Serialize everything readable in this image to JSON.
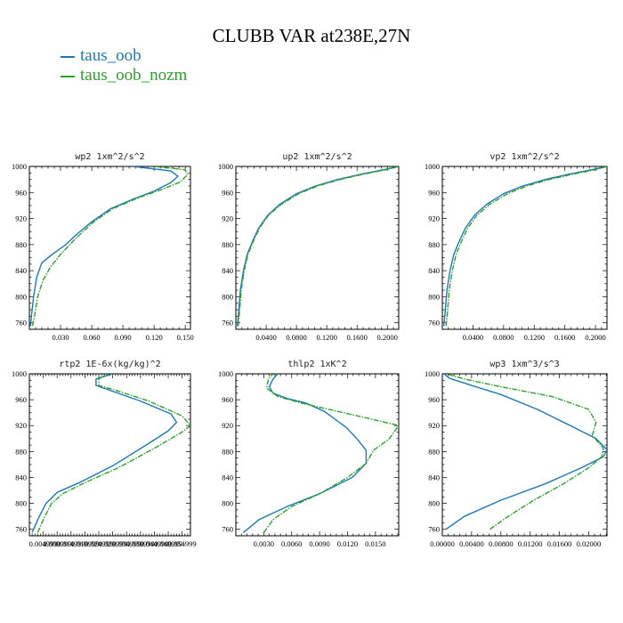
{
  "title": "CLUBB VAR at238E,27N",
  "legend": [
    {
      "name": "taus_oob",
      "color": "#1f77b4"
    },
    {
      "name": "taus_oob_nozm",
      "color": "#2ca02c"
    }
  ],
  "chart_data": [
    {
      "type": "line",
      "title": "wp2   1xm^2/s^2",
      "xlim": [
        0.0,
        0.155
      ],
      "xticks": [
        "0.030",
        "0.060",
        "0.090",
        "0.120",
        "0.150"
      ],
      "xtick_values": [
        0.03,
        0.06,
        0.09,
        0.12,
        0.15
      ],
      "ylim": [
        1000,
        750
      ],
      "yticks": [
        760,
        800,
        840,
        880,
        920,
        960,
        1000
      ],
      "series": [
        {
          "color": "#1f77b4",
          "dashed": false,
          "x": [
            0.001,
            0.002,
            0.004,
            0.007,
            0.012,
            0.022,
            0.035,
            0.045,
            0.06,
            0.078,
            0.1,
            0.12,
            0.136,
            0.143,
            0.136,
            0.1
          ],
          "y": [
            755,
            770,
            800,
            830,
            852,
            865,
            880,
            895,
            915,
            935,
            950,
            962,
            975,
            985,
            993,
            1000
          ]
        },
        {
          "color": "#2ca02c",
          "dashed": true,
          "x": [
            0.003,
            0.005,
            0.008,
            0.013,
            0.02,
            0.03,
            0.045,
            0.062,
            0.08,
            0.105,
            0.128,
            0.145,
            0.152,
            0.15,
            0.12
          ],
          "y": [
            755,
            770,
            800,
            825,
            845,
            865,
            890,
            915,
            935,
            952,
            965,
            976,
            987,
            995,
            1000
          ]
        }
      ]
    },
    {
      "type": "line",
      "title": "up2   1xm^2/s^2",
      "xlim": [
        0.0,
        0.215
      ],
      "xticks": [
        "0.0400",
        "0.0800",
        "0.1200",
        "0.1600",
        "0.2000"
      ],
      "xtick_values": [
        0.04,
        0.08,
        0.12,
        0.16,
        0.2
      ],
      "ylim": [
        1000,
        750
      ],
      "yticks": [
        760,
        800,
        840,
        880,
        920,
        960,
        1000
      ],
      "series": [
        {
          "color": "#1f77b4",
          "dashed": false,
          "x": [
            0.002,
            0.004,
            0.006,
            0.01,
            0.015,
            0.022,
            0.03,
            0.042,
            0.058,
            0.08,
            0.105,
            0.135,
            0.165,
            0.195,
            0.215
          ],
          "y": [
            755,
            780,
            810,
            840,
            865,
            885,
            905,
            925,
            942,
            958,
            970,
            980,
            988,
            995,
            1000
          ]
        },
        {
          "color": "#2ca02c",
          "dashed": true,
          "x": [
            0.003,
            0.005,
            0.007,
            0.011,
            0.016,
            0.023,
            0.031,
            0.043,
            0.06,
            0.083,
            0.108,
            0.138,
            0.168,
            0.198,
            0.215
          ],
          "y": [
            755,
            780,
            810,
            840,
            865,
            885,
            905,
            925,
            942,
            958,
            970,
            980,
            988,
            995,
            1000
          ]
        }
      ]
    },
    {
      "type": "line",
      "title": "vp2   1xm^2/s^2",
      "xlim": [
        0.0,
        0.215
      ],
      "xticks": [
        "0.0400",
        "0.0800",
        "0.1200",
        "0.1600",
        "0.2000"
      ],
      "xtick_values": [
        0.04,
        0.08,
        0.12,
        0.16,
        0.2
      ],
      "ylim": [
        1000,
        750
      ],
      "yticks": [
        760,
        800,
        840,
        880,
        920,
        960,
        1000
      ],
      "series": [
        {
          "color": "#1f77b4",
          "dashed": false,
          "x": [
            0.002,
            0.004,
            0.006,
            0.01,
            0.015,
            0.022,
            0.03,
            0.042,
            0.058,
            0.08,
            0.105,
            0.135,
            0.165,
            0.195,
            0.215
          ],
          "y": [
            755,
            780,
            810,
            840,
            865,
            885,
            905,
            925,
            942,
            958,
            970,
            980,
            988,
            995,
            1000
          ]
        },
        {
          "color": "#2ca02c",
          "dashed": true,
          "x": [
            0.005,
            0.007,
            0.009,
            0.013,
            0.018,
            0.025,
            0.033,
            0.045,
            0.062,
            0.085,
            0.11,
            0.14,
            0.17,
            0.2,
            0.215
          ],
          "y": [
            755,
            780,
            810,
            840,
            865,
            885,
            905,
            925,
            942,
            958,
            970,
            980,
            988,
            995,
            1000
          ]
        }
      ]
    },
    {
      "type": "line",
      "title": "rtp2   1E-6x(kg/kg)^2",
      "xlim": [
        0.0,
        0.058
      ],
      "xticks": [
        "0.004999",
        "0.009999",
        "0.014999",
        "0.019999",
        "0.024999",
        "0.029999",
        "0.034999",
        "0.039999",
        "0.044999",
        "0.049999",
        "0.054999"
      ],
      "xtick_values": [
        0.005,
        0.01,
        0.015,
        0.02,
        0.025,
        0.03,
        0.035,
        0.04,
        0.045,
        0.05,
        0.055
      ],
      "ylim": [
        1000,
        750
      ],
      "yticks": [
        760,
        800,
        840,
        880,
        920,
        960,
        1000
      ],
      "series": [
        {
          "color": "#1f77b4",
          "dashed": false,
          "x": [
            0.001,
            0.003,
            0.006,
            0.01,
            0.018,
            0.03,
            0.042,
            0.05,
            0.053,
            0.051,
            0.04,
            0.028,
            0.024,
            0.024,
            0.03
          ],
          "y": [
            755,
            775,
            800,
            817,
            832,
            858,
            890,
            912,
            925,
            938,
            958,
            976,
            982,
            992,
            1000
          ]
        },
        {
          "color": "#2ca02c",
          "dashed": true,
          "x": [
            0.003,
            0.005,
            0.008,
            0.012,
            0.02,
            0.032,
            0.045,
            0.055,
            0.058,
            0.055,
            0.043,
            0.03,
            0.025,
            0.025,
            0.028
          ],
          "y": [
            755,
            775,
            800,
            815,
            832,
            855,
            885,
            910,
            920,
            935,
            958,
            976,
            982,
            992,
            1000
          ]
        }
      ]
    },
    {
      "type": "line",
      "title": "thlp2   1xK^2",
      "xlim": [
        0.0,
        0.0175
      ],
      "xticks": [
        "0.0030",
        "0.0060",
        "0.0090",
        "0.0120",
        "0.0150"
      ],
      "xtick_values": [
        0.003,
        0.006,
        0.009,
        0.012,
        0.015
      ],
      "ylim": [
        1000,
        750
      ],
      "yticks": [
        760,
        800,
        840,
        880,
        920,
        960,
        1000
      ],
      "series": [
        {
          "color": "#1f77b4",
          "dashed": false,
          "x": [
            0.0008,
            0.0025,
            0.0055,
            0.009,
            0.0125,
            0.014,
            0.014,
            0.013,
            0.0118,
            0.0095,
            0.0075,
            0.0055,
            0.004,
            0.0036,
            0.004,
            0.0045
          ],
          "y": [
            755,
            775,
            795,
            815,
            840,
            862,
            882,
            900,
            918,
            942,
            955,
            962,
            970,
            980,
            992,
            1000
          ]
        },
        {
          "color": "#2ca02c",
          "dashed": true,
          "x": [
            0.003,
            0.004,
            0.006,
            0.009,
            0.012,
            0.014,
            0.0148,
            0.0165,
            0.0175,
            0.014,
            0.01,
            0.007,
            0.0045,
            0.0033,
            0.0035,
            0.004
          ],
          "y": [
            755,
            775,
            795,
            815,
            840,
            862,
            882,
            900,
            920,
            932,
            945,
            955,
            965,
            978,
            992,
            1000
          ]
        }
      ]
    },
    {
      "type": "line",
      "title": "wp3   1xm^3/s^3",
      "xlim": [
        0.0,
        0.0225
      ],
      "xticks": [
        "0.00000",
        "0.00400",
        "0.00800",
        "0.01200",
        "0.01600",
        "0.02000"
      ],
      "xtick_values": [
        0.0,
        0.004,
        0.008,
        0.012,
        0.016,
        0.02
      ],
      "ylim": [
        1000,
        750
      ],
      "yticks": [
        760,
        800,
        840,
        880,
        920,
        960,
        1000
      ],
      "series": [
        {
          "color": "#1f77b4",
          "dashed": false,
          "x": [
            0.0005,
            0.003,
            0.008,
            0.014,
            0.019,
            0.022,
            0.0225,
            0.021,
            0.0175,
            0.013,
            0.008,
            0.004,
            0.001,
            0.0002
          ],
          "y": [
            760,
            780,
            805,
            830,
            855,
            872,
            883,
            900,
            920,
            945,
            968,
            982,
            993,
            1000
          ]
        },
        {
          "color": "#2ca02c",
          "dashed": true,
          "x": [
            0.0065,
            0.009,
            0.0125,
            0.0165,
            0.02,
            0.0218,
            0.022,
            0.0205,
            0.021,
            0.02,
            0.015,
            0.008,
            0.003,
            0.0005
          ],
          "y": [
            760,
            780,
            805,
            830,
            855,
            872,
            885,
            905,
            925,
            945,
            965,
            980,
            992,
            1000
          ]
        }
      ]
    }
  ]
}
